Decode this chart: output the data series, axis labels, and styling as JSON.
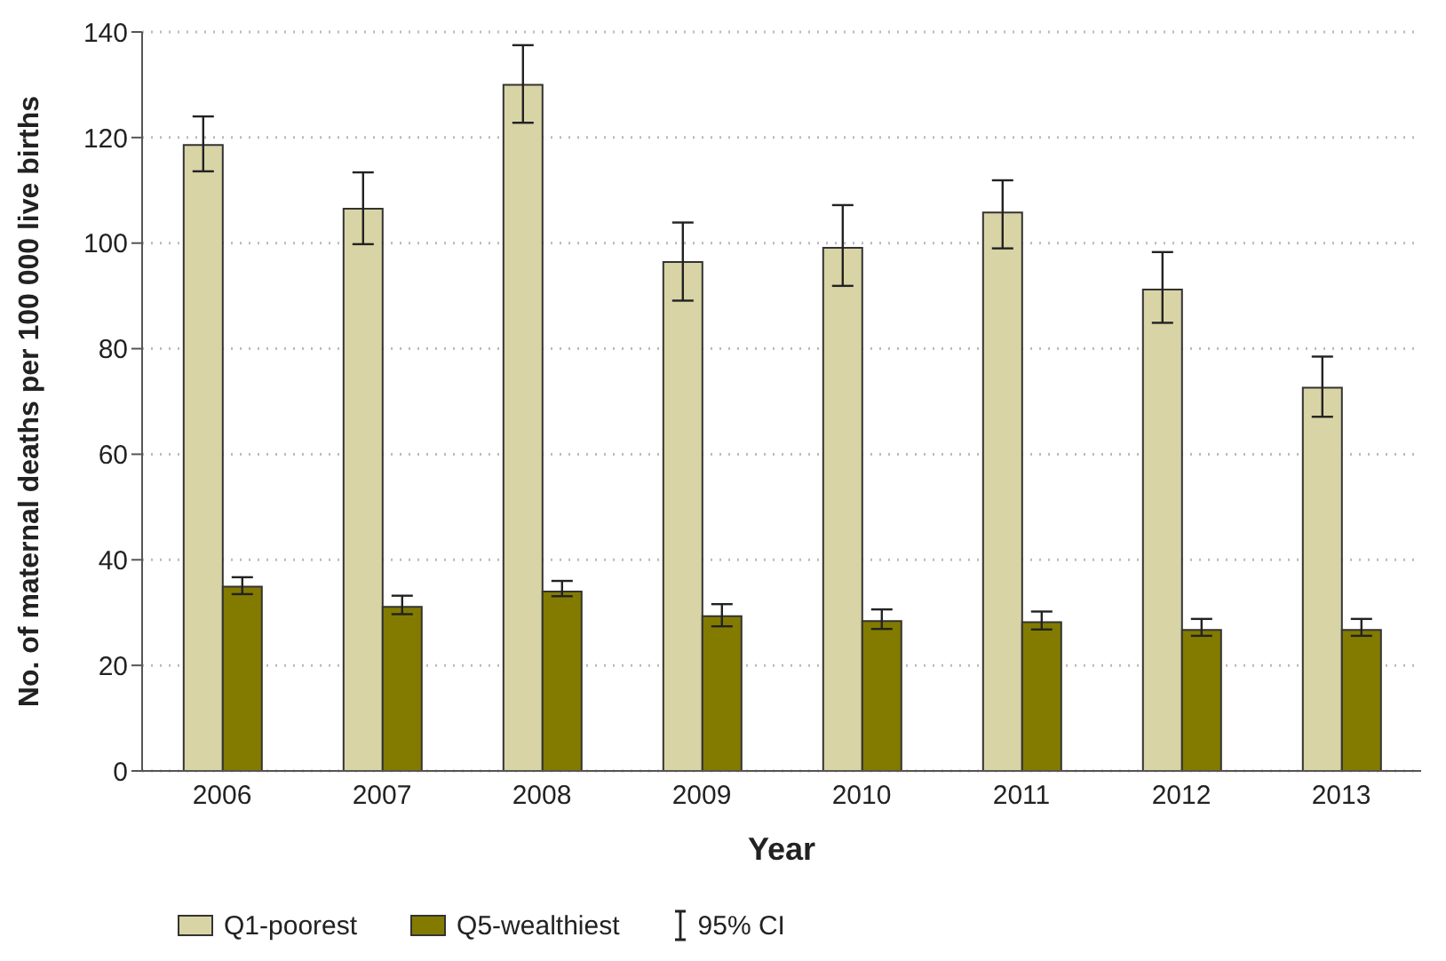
{
  "chart_data": {
    "type": "bar",
    "xlabel": "Year",
    "ylabel": "No. of maternal deaths per 100 000 live births",
    "categories": [
      "2006",
      "2007",
      "2008",
      "2009",
      "2010",
      "2011",
      "2012",
      "2013"
    ],
    "series": [
      {
        "name": "Q1-poorest",
        "color": "#d8d4a5",
        "values": [
          118.6,
          106.5,
          130.0,
          96.4,
          99.1,
          105.8,
          91.2,
          72.6
        ],
        "errors": [
          [
            113.6,
            124.0
          ],
          [
            99.8,
            113.4
          ],
          [
            122.8,
            137.5
          ],
          [
            89.1,
            103.9
          ],
          [
            91.9,
            107.2
          ],
          [
            99.0,
            111.9
          ],
          [
            84.9,
            98.3
          ],
          [
            67.1,
            78.5
          ]
        ]
      },
      {
        "name": "Q5-wealthiest",
        "color": "#837b00",
        "values": [
          34.9,
          31.1,
          34.0,
          29.3,
          28.4,
          28.2,
          26.7,
          26.7
        ],
        "errors": [
          [
            33.5,
            36.7
          ],
          [
            29.7,
            33.2
          ],
          [
            33.1,
            36.0
          ],
          [
            27.4,
            31.6
          ],
          [
            26.9,
            30.6
          ],
          [
            26.8,
            30.2
          ],
          [
            25.6,
            28.8
          ],
          [
            25.6,
            28.8
          ]
        ]
      }
    ],
    "ylim": [
      0,
      140
    ],
    "yticks": [
      0,
      20,
      40,
      60,
      80,
      100,
      120,
      140
    ],
    "grid": "y",
    "legend": "bottom",
    "annotations": [
      "95% CI"
    ]
  }
}
